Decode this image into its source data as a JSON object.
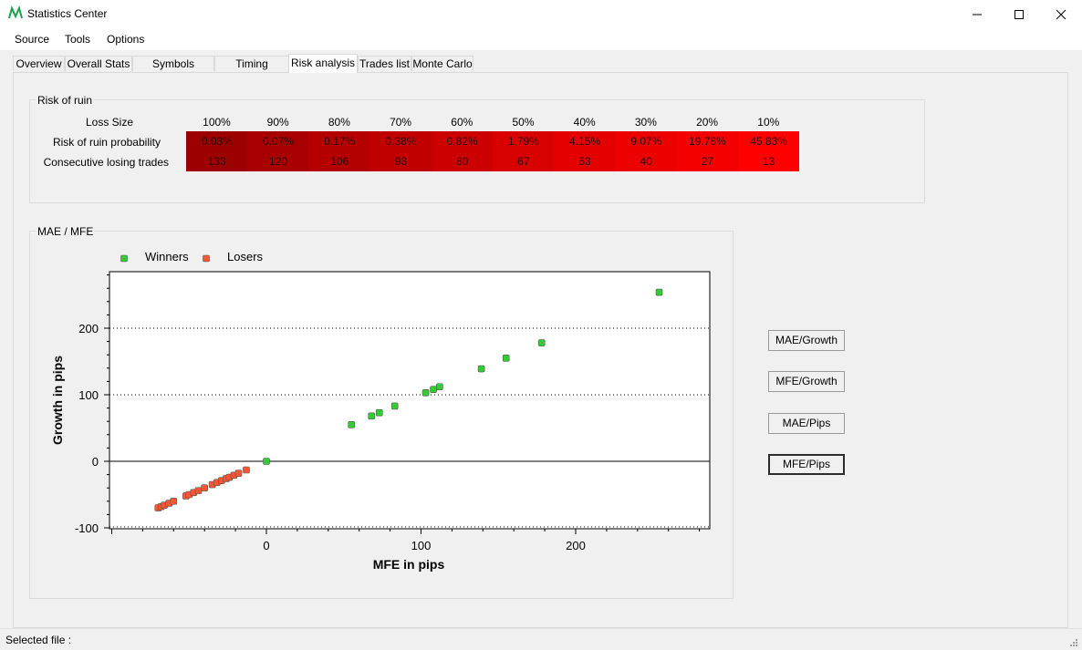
{
  "window": {
    "title": "Statistics Center"
  },
  "menu": [
    "Source",
    "Tools",
    "Options"
  ],
  "tabs": [
    "Overview",
    "Overall Stats",
    "Symbols analysis",
    "Timing analysis",
    "Risk analysis",
    "Trades list",
    "Monte Carlo"
  ],
  "active_tab": "Risk analysis",
  "risk_of_ruin": {
    "group_label": "Risk of ruin",
    "row_labels": [
      "Loss Size",
      "Risk of ruin probability",
      "Consecutive losing trades"
    ],
    "loss_sizes": [
      "100%",
      "90%",
      "80%",
      "70%",
      "60%",
      "50%",
      "40%",
      "30%",
      "20%",
      "10%"
    ],
    "probabilities": [
      "0.03%",
      "0.07%",
      "0.17%",
      "0.38%",
      "0.82%",
      "1.79%",
      "4.15%",
      "9.07%",
      "19.78%",
      "45.83%"
    ],
    "losing_trades": [
      "133",
      "120",
      "106",
      "93",
      "80",
      "67",
      "53",
      "40",
      "27",
      "13"
    ],
    "cell_colors": [
      "#9c0000",
      "#a80000",
      "#b40000",
      "#c00000",
      "#cc0000",
      "#d80000",
      "#e40000",
      "#ec0000",
      "#f40000",
      "#ff0000"
    ]
  },
  "mae_mfe": {
    "group_label": "MAE / MFE",
    "buttons": [
      "MAE/Growth",
      "MFE/Growth",
      "MAE/Pips",
      "MFE/Pips"
    ],
    "default_button": "MFE/Pips"
  },
  "chart_data": {
    "type": "scatter",
    "xlabel": "MFE in pips",
    "ylabel": "Growth in pips",
    "xlim": [
      -100,
      285
    ],
    "ylim": [
      -100,
      285
    ],
    "x_ticks": [
      "0",
      "100",
      "200"
    ],
    "y_ticks": [
      "-100",
      "0",
      "100",
      "200"
    ],
    "grid": "horizontal dotted at 100 and 200",
    "legend_position": "top-left",
    "series": [
      {
        "name": "Winners",
        "color": "#33cc33",
        "points": [
          [
            0,
            0
          ],
          [
            55,
            55
          ],
          [
            68,
            68
          ],
          [
            73,
            73
          ],
          [
            83,
            83
          ],
          [
            103,
            103
          ],
          [
            108,
            108
          ],
          [
            112,
            112
          ],
          [
            139,
            139
          ],
          [
            155,
            155
          ],
          [
            178,
            178
          ],
          [
            254,
            254
          ]
        ]
      },
      {
        "name": "Losers",
        "color": "#ff5533",
        "points": [
          [
            -70,
            -70
          ],
          [
            -68,
            -68
          ],
          [
            -66,
            -66
          ],
          [
            -63,
            -63
          ],
          [
            -60,
            -60
          ],
          [
            -52,
            -52
          ],
          [
            -50,
            -50
          ],
          [
            -47,
            -47
          ],
          [
            -44,
            -44
          ],
          [
            -40,
            -40
          ],
          [
            -35,
            -35
          ],
          [
            -32,
            -32
          ],
          [
            -29,
            -29
          ],
          [
            -26,
            -26
          ],
          [
            -24,
            -24
          ],
          [
            -21,
            -21
          ],
          [
            -18,
            -18
          ],
          [
            -13,
            -13
          ]
        ]
      }
    ]
  },
  "status": {
    "label": "Selected file :"
  }
}
